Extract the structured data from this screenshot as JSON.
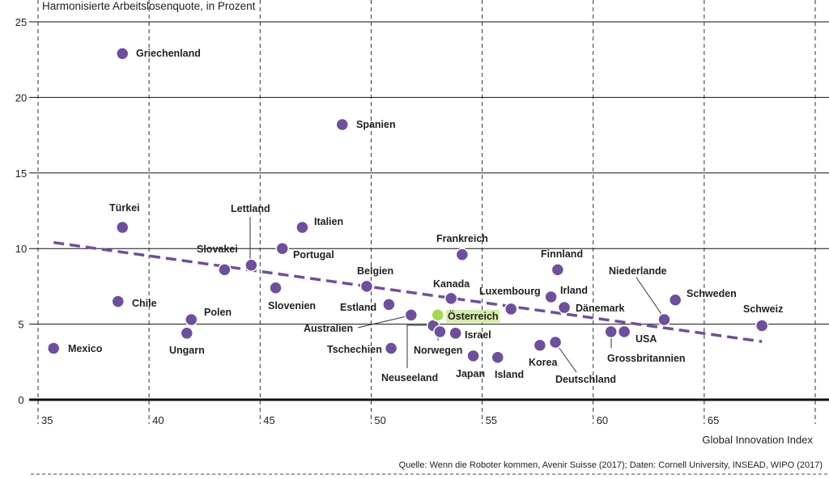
{
  "chart_data": {
    "type": "scatter",
    "ylabel": "Harmonisierte Arbeitslosenquote, in Prozent",
    "xlabel": "Global Innovation Index",
    "source": "Quelle: Wenn die Roboter kommen, Avenir Suisse (2017); Daten: Cornell University, INSEAD, WIPO (2017)",
    "xlim": [
      35,
      70
    ],
    "ylim": [
      0,
      25
    ],
    "xticks": [
      35,
      40,
      45,
      50,
      55,
      60,
      65
    ],
    "yticks": [
      0,
      5,
      10,
      15,
      20,
      25
    ],
    "grid": true,
    "colors": {
      "point": "#6e4f9e",
      "highlight": "#a6d94a",
      "highlight_bg": "#d4ecaa",
      "trend": "#6e4f9e"
    },
    "trendline": {
      "x": [
        35.7,
        67.6
      ],
      "y": [
        10.4,
        3.85
      ]
    },
    "points": [
      {
        "name": "Mexico",
        "x": 35.7,
        "y": 3.4
      },
      {
        "name": "Griechenland",
        "x": 38.8,
        "y": 22.9
      },
      {
        "name": "Türkei",
        "x": 38.8,
        "y": 11.4
      },
      {
        "name": "Chile",
        "x": 38.6,
        "y": 6.5
      },
      {
        "name": "Polen",
        "x": 41.9,
        "y": 5.3
      },
      {
        "name": "Ungarn",
        "x": 41.7,
        "y": 4.4
      },
      {
        "name": "Slovakei",
        "x": 43.4,
        "y": 8.6
      },
      {
        "name": "Lettland",
        "x": 44.6,
        "y": 8.9
      },
      {
        "name": "Portugal",
        "x": 46.0,
        "y": 10.0
      },
      {
        "name": "Slovenien",
        "x": 45.7,
        "y": 7.4
      },
      {
        "name": "Italien",
        "x": 46.9,
        "y": 11.4
      },
      {
        "name": "Spanien",
        "x": 48.7,
        "y": 18.2
      },
      {
        "name": "Belgien",
        "x": 49.8,
        "y": 7.5
      },
      {
        "name": "Estland",
        "x": 50.8,
        "y": 6.3
      },
      {
        "name": "Tschechien",
        "x": 50.9,
        "y": 3.4
      },
      {
        "name": "Australien",
        "x": 51.8,
        "y": 5.6
      },
      {
        "name": "Neuseeland",
        "x": 52.8,
        "y": 4.9
      },
      {
        "name": "Norwegen",
        "x": 53.1,
        "y": 4.5
      },
      {
        "name": "Österreich",
        "x": 53.0,
        "y": 5.6,
        "highlight": true
      },
      {
        "name": "Israel",
        "x": 53.8,
        "y": 4.4
      },
      {
        "name": "Kanada",
        "x": 53.6,
        "y": 6.7
      },
      {
        "name": "Frankreich",
        "x": 54.1,
        "y": 9.6
      },
      {
        "name": "Japan",
        "x": 54.6,
        "y": 2.9
      },
      {
        "name": "Island",
        "x": 55.7,
        "y": 2.8
      },
      {
        "name": "Luxembourg",
        "x": 56.3,
        "y": 6.0
      },
      {
        "name": "Korea",
        "x": 57.6,
        "y": 3.6
      },
      {
        "name": "Deutschland",
        "x": 58.3,
        "y": 3.8
      },
      {
        "name": "Irland",
        "x": 58.1,
        "y": 6.8
      },
      {
        "name": "Finnland",
        "x": 58.4,
        "y": 8.6
      },
      {
        "name": "Dänemark",
        "x": 58.7,
        "y": 6.1
      },
      {
        "name": "Grossbritannien",
        "x": 60.8,
        "y": 4.5
      },
      {
        "name": "USA",
        "x": 61.4,
        "y": 4.5
      },
      {
        "name": "Niederlande",
        "x": 63.2,
        "y": 5.3
      },
      {
        "name": "Schweden",
        "x": 63.7,
        "y": 6.6
      },
      {
        "name": "Schweiz",
        "x": 67.6,
        "y": 4.9
      }
    ]
  }
}
